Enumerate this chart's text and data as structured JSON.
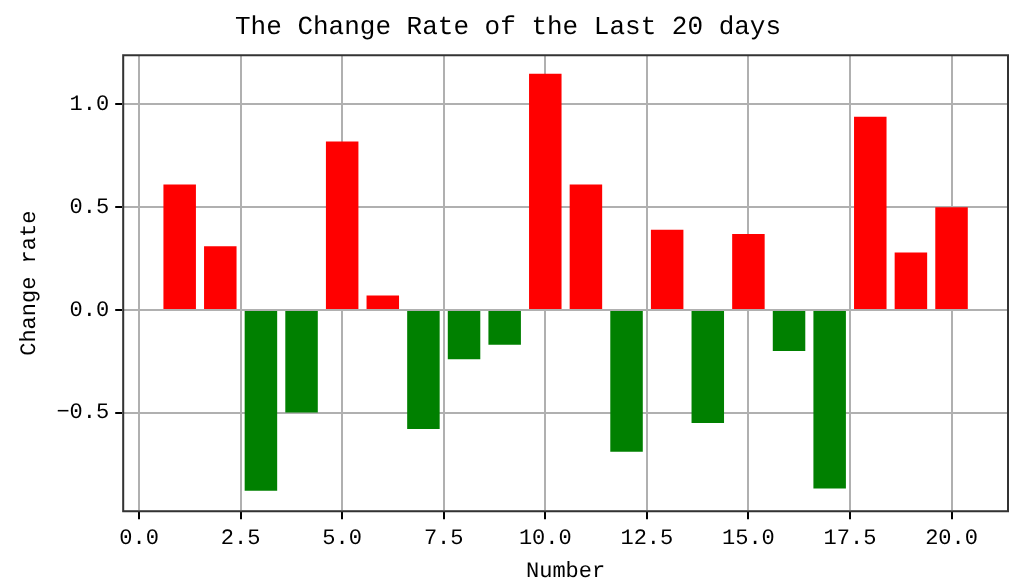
{
  "chart_data": {
    "type": "bar",
    "title": "The Change Rate of the Last 20 days",
    "xlabel": "Number",
    "ylabel": "Change rate",
    "x": [
      1,
      2,
      3,
      4,
      5,
      6,
      7,
      8,
      9,
      10,
      11,
      12,
      13,
      14,
      15,
      16,
      17,
      18,
      19,
      20
    ],
    "values": [
      0.61,
      0.31,
      -0.88,
      -0.5,
      0.82,
      0.07,
      -0.58,
      -0.24,
      -0.17,
      1.15,
      0.61,
      -0.69,
      0.39,
      -0.55,
      0.37,
      -0.2,
      -0.87,
      0.94,
      0.28,
      0.5
    ],
    "colors": [
      "#ff0000",
      "#ff0000",
      "#008000",
      "#008000",
      "#ff0000",
      "#ff0000",
      "#008000",
      "#008000",
      "#008000",
      "#ff0000",
      "#ff0000",
      "#008000",
      "#ff0000",
      "#008000",
      "#ff0000",
      "#008000",
      "#008000",
      "#ff0000",
      "#ff0000",
      "#ff0000"
    ],
    "xlim": [
      -0.39,
      21.39
    ],
    "ylim": [
      -0.98,
      1.24
    ],
    "xticks": [
      {
        "value": 0,
        "label": "0.0"
      },
      {
        "value": 2.5,
        "label": "2.5"
      },
      {
        "value": 5,
        "label": "5.0"
      },
      {
        "value": 7.5,
        "label": "7.5"
      },
      {
        "value": 10,
        "label": "10.0"
      },
      {
        "value": 12.5,
        "label": "12.5"
      },
      {
        "value": 15,
        "label": "15.0"
      },
      {
        "value": 17.5,
        "label": "17.5"
      },
      {
        "value": 20,
        "label": "20.0"
      }
    ],
    "yticks": [
      {
        "value": -0.5,
        "label": "−0.5"
      },
      {
        "value": 0,
        "label": "0.0"
      },
      {
        "value": 0.5,
        "label": "0.5"
      },
      {
        "value": 1,
        "label": "1.0"
      }
    ],
    "grid": true,
    "legend": false
  }
}
